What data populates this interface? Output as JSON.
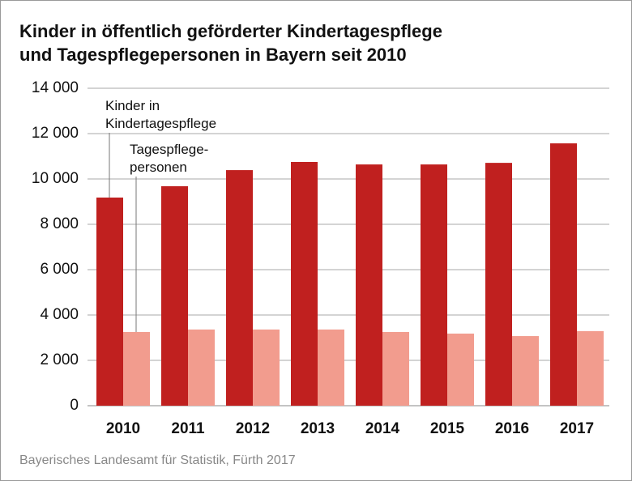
{
  "chart_data": {
    "type": "bar",
    "title": "Kinder in öffentlich geförderter Kindertagespflege\nund Tagespflegepersonen in Bayern seit 2010",
    "categories": [
      "2010",
      "2011",
      "2012",
      "2013",
      "2014",
      "2015",
      "2016",
      "2017"
    ],
    "series": [
      {
        "name": "Kinder in\nKindertagespflege",
        "color": "#c0201f",
        "values": [
          9180,
          9680,
          10390,
          10750,
          10640,
          10640,
          10710,
          11570
        ]
      },
      {
        "name": "Tagespflege-\npersonen",
        "color": "#f29c8e",
        "values": [
          3250,
          3360,
          3360,
          3360,
          3250,
          3180,
          3070,
          3290
        ]
      }
    ],
    "ylim": [
      0,
      14000
    ],
    "yticks": [
      0,
      {
        "value": 2000,
        "label": "2 000"
      },
      {
        "value": 4000,
        "label": "4 000"
      },
      {
        "value": 6000,
        "label": "6 000"
      },
      {
        "value": 8000,
        "label": "8 000"
      },
      {
        "value": 10000,
        "label": "10 000"
      },
      {
        "value": 12000,
        "label": "12 000"
      },
      {
        "value": 14000,
        "label": "14 000"
      }
    ],
    "grid": true,
    "source": "Bayerisches Landesamt für Statistik, Fürth 2017"
  }
}
